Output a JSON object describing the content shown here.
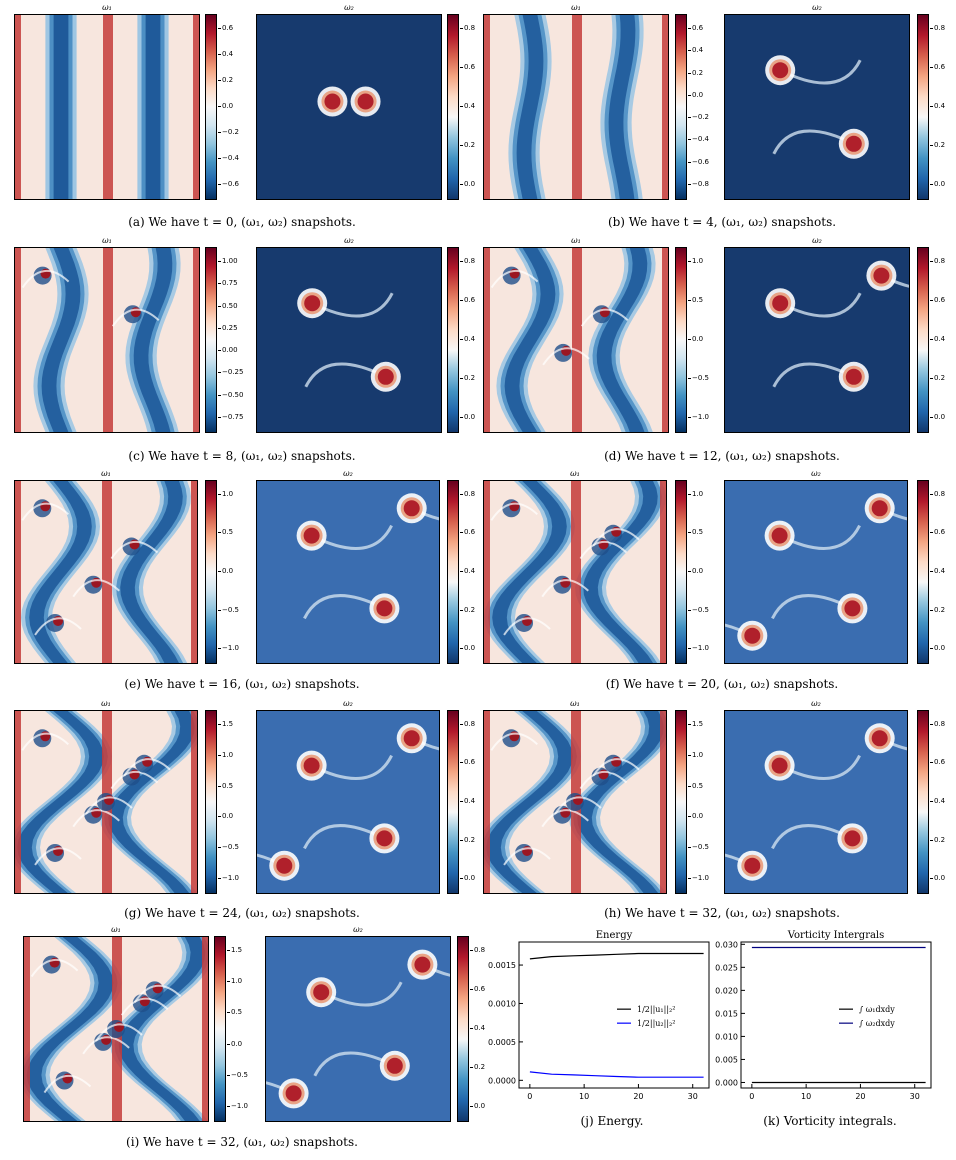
{
  "panel_titles": {
    "w1": "ω₁",
    "w2": "ω₂"
  },
  "captions": {
    "a": "(a) We have t = 0, (ω₁, ω₂) snapshots.",
    "b": "(b) We have t = 4, (ω₁, ω₂) snapshots.",
    "c": "(c) We have t = 8, (ω₁, ω₂) snapshots.",
    "d": "(d) We have t = 12, (ω₁, ω₂) snapshots.",
    "e": "(e) We have t = 16, (ω₁, ω₂) snapshots.",
    "f": "(f) We have t = 20, (ω₁, ω₂) snapshots.",
    "g": "(g) We have t = 24, (ω₁, ω₂) snapshots.",
    "h": "(h) We have t = 32, (ω₁, ω₂) snapshots.",
    "i": "(i) We have t = 32, (ω₁, ω₂) snapshots.",
    "j": "(j) Energy.",
    "k": "(k) Vorticity integrals."
  },
  "chart_data": [
    {
      "type": "heatmap",
      "caption": "(a) We have t = 0, (ω₁, ω₂) snapshots.",
      "panels": [
        {
          "title": "ω₁",
          "colorbar_ticks": [
            "0.6",
            "0.4",
            "0.2",
            "0.0",
            "−0.2",
            "−0.4",
            "−0.6"
          ]
        },
        {
          "title": "ω₂",
          "colorbar_ticks": [
            "0.8",
            "0.6",
            "0.4",
            "0.2",
            "0.0"
          ]
        }
      ]
    },
    {
      "type": "heatmap",
      "caption": "(b) We have t = 4, (ω₁, ω₂) snapshots.",
      "panels": [
        {
          "title": "ω₁",
          "colorbar_ticks": [
            "0.6",
            "0.4",
            "0.2",
            "0.0",
            "−0.2",
            "−0.4",
            "−0.6",
            "−0.8"
          ]
        },
        {
          "title": "ω₂",
          "colorbar_ticks": [
            "0.8",
            "0.6",
            "0.4",
            "0.2",
            "0.0"
          ]
        }
      ]
    },
    {
      "type": "heatmap",
      "caption": "(c) We have t = 8, (ω₁, ω₂) snapshots.",
      "panels": [
        {
          "title": "ω₁",
          "colorbar_ticks": [
            "1.00",
            "0.75",
            "0.50",
            "0.25",
            "0.00",
            "−0.25",
            "−0.50",
            "−0.75"
          ]
        },
        {
          "title": "ω₂",
          "colorbar_ticks": [
            "0.8",
            "0.6",
            "0.4",
            "0.2",
            "0.0"
          ]
        }
      ]
    },
    {
      "type": "heatmap",
      "caption": "(d) We have t = 12, (ω₁, ω₂) snapshots.",
      "panels": [
        {
          "title": "ω₁",
          "colorbar_ticks": [
            "1.0",
            "0.5",
            "0.0",
            "−0.5",
            "−1.0"
          ]
        },
        {
          "title": "ω₂",
          "colorbar_ticks": [
            "0.8",
            "0.6",
            "0.4",
            "0.2",
            "0.0"
          ]
        }
      ]
    },
    {
      "type": "heatmap",
      "caption": "(e) We have t = 16, (ω₁, ω₂) snapshots.",
      "panels": [
        {
          "title": "ω₁",
          "colorbar_ticks": [
            "1.0",
            "0.5",
            "0.0",
            "−0.5",
            "−1.0"
          ]
        },
        {
          "title": "ω₂",
          "colorbar_ticks": [
            "0.8",
            "0.6",
            "0.4",
            "0.2",
            "0.0"
          ]
        }
      ]
    },
    {
      "type": "heatmap",
      "caption": "(f) We have t = 20, (ω₁, ω₂) snapshots.",
      "panels": [
        {
          "title": "ω₁",
          "colorbar_ticks": [
            "1.0",
            "0.5",
            "0.0",
            "−0.5",
            "−1.0"
          ]
        },
        {
          "title": "ω₂",
          "colorbar_ticks": [
            "0.8",
            "0.6",
            "0.4",
            "0.2",
            "0.0"
          ]
        }
      ]
    },
    {
      "type": "heatmap",
      "caption": "(g) We have t = 24, (ω₁, ω₂) snapshots.",
      "panels": [
        {
          "title": "ω₁",
          "colorbar_ticks": [
            "1.5",
            "1.0",
            "0.5",
            "0.0",
            "−0.5",
            "−1.0"
          ]
        },
        {
          "title": "ω₂",
          "colorbar_ticks": [
            "0.8",
            "0.6",
            "0.4",
            "0.2",
            "0.0"
          ]
        }
      ]
    },
    {
      "type": "heatmap",
      "caption": "(h) We have t = 32, (ω₁, ω₂) snapshots.",
      "panels": [
        {
          "title": "ω₁",
          "colorbar_ticks": [
            "1.5",
            "1.0",
            "0.5",
            "0.0",
            "−0.5",
            "−1.0"
          ]
        },
        {
          "title": "ω₂",
          "colorbar_ticks": [
            "0.8",
            "0.6",
            "0.4",
            "0.2",
            "0.0"
          ]
        }
      ]
    },
    {
      "type": "heatmap",
      "caption": "(i) We have t = 32, (ω₁, ω₂) snapshots.",
      "panels": [
        {
          "title": "ω₁",
          "colorbar_ticks": [
            "1.5",
            "1.0",
            "0.5",
            "0.0",
            "−0.5",
            "−1.0"
          ]
        },
        {
          "title": "ω₂",
          "colorbar_ticks": [
            "0.8",
            "0.6",
            "0.4",
            "0.2",
            "0.0"
          ]
        }
      ]
    },
    {
      "type": "line",
      "title": "Energy",
      "caption": "(j) Energy.",
      "xlim": [
        -2,
        33
      ],
      "ylim": [
        -0.0001,
        0.0018
      ],
      "xticks": [
        0,
        10,
        20,
        30
      ],
      "yticks": [
        0.0,
        0.0005,
        0.001,
        0.0015
      ],
      "ytick_labels": [
        "0.0000",
        "0.0005",
        "0.0010",
        "0.0015"
      ],
      "legend_position": "center-right",
      "series": [
        {
          "name": "1/2||u₁||₂²",
          "color": "#000000",
          "x": [
            0,
            4,
            8,
            12,
            16,
            20,
            24,
            28,
            32
          ],
          "y": [
            0.00158,
            0.00161,
            0.00162,
            0.00163,
            0.00164,
            0.00165,
            0.00165,
            0.00165,
            0.00165
          ]
        },
        {
          "name": "1/2||u₂||₂²",
          "color": "#0000ff",
          "x": [
            0,
            4,
            8,
            12,
            16,
            20,
            24,
            28,
            32
          ],
          "y": [
            0.00011,
            8e-05,
            7e-05,
            6e-05,
            5e-05,
            4e-05,
            4e-05,
            4e-05,
            4e-05
          ]
        }
      ]
    },
    {
      "type": "line",
      "title": "Vorticity Intergrals",
      "caption": "(k) Vorticity integrals.",
      "xlim": [
        -2,
        33
      ],
      "ylim": [
        -0.0012,
        0.0305
      ],
      "xticks": [
        0,
        10,
        20,
        30
      ],
      "yticks": [
        0.0,
        0.005,
        0.01,
        0.015,
        0.02,
        0.025,
        0.03
      ],
      "ytick_labels": [
        "0.000",
        "0.005",
        "0.010",
        "0.015",
        "0.020",
        "0.025",
        "0.030"
      ],
      "legend_position": "center-right",
      "series": [
        {
          "name": "∫ ω₁dxdy",
          "color": "#000000",
          "x": [
            0,
            32
          ],
          "y": [
            0.0,
            0.0
          ]
        },
        {
          "name": "∫ ω₂dxdy",
          "color": "#00007f",
          "x": [
            0,
            32
          ],
          "y": [
            0.0293,
            0.0293
          ]
        }
      ]
    }
  ]
}
